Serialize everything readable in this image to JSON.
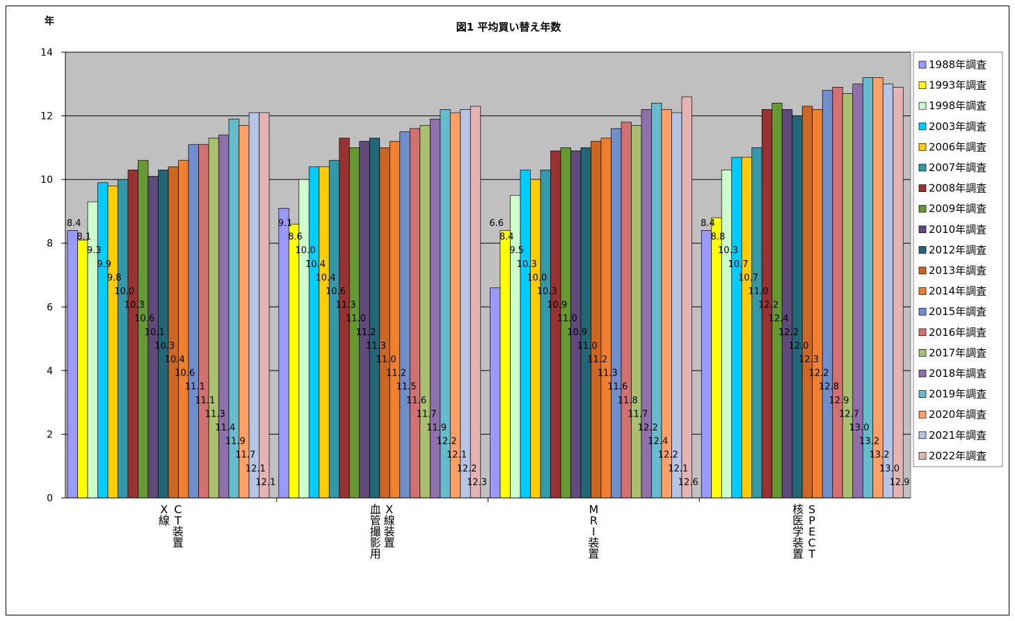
{
  "chart_data": {
    "type": "bar",
    "title": "図1 平均買い替え年数",
    "ylabel": "年",
    "ylim": [
      0,
      14
    ],
    "yticks": [
      0,
      2,
      4,
      6,
      8,
      10,
      12,
      14
    ],
    "grid": true,
    "legend_position": "right",
    "categories": [
      {
        "lines": [
          "X線",
          "CT装置"
        ]
      },
      {
        "lines": [
          "血管撮影用",
          "X線装置"
        ]
      },
      {
        "lines": [
          "MRI装置"
        ]
      },
      {
        "lines": [
          "核医学装置",
          "SPECT"
        ]
      }
    ],
    "series": [
      {
        "name": "1988年調査",
        "color": "#9999ff",
        "values": [
          8.4,
          9.1,
          6.6,
          8.4
        ]
      },
      {
        "name": "1993年調査",
        "color": "#ffff00",
        "values": [
          8.1,
          8.6,
          8.4,
          8.8
        ]
      },
      {
        "name": "1998年調査",
        "color": "#ccffcc",
        "values": [
          9.3,
          10.0,
          9.5,
          10.3
        ]
      },
      {
        "name": "2003年調査",
        "color": "#00ccff",
        "values": [
          9.9,
          10.4,
          10.3,
          10.7
        ]
      },
      {
        "name": "2006年調査",
        "color": "#ffcc00",
        "values": [
          9.8,
          10.4,
          10.0,
          10.7
        ]
      },
      {
        "name": "2007年調査",
        "color": "#3399aa",
        "values": [
          10.0,
          10.6,
          10.3,
          11.0
        ]
      },
      {
        "name": "2008年調査",
        "color": "#993333",
        "values": [
          10.3,
          11.3,
          10.9,
          12.2
        ]
      },
      {
        "name": "2009年調査",
        "color": "#669933",
        "values": [
          10.6,
          11.0,
          11.0,
          12.4
        ]
      },
      {
        "name": "2010年調査",
        "color": "#604a7b",
        "values": [
          10.1,
          11.2,
          10.9,
          12.2
        ]
      },
      {
        "name": "2012年調査",
        "color": "#226677",
        "values": [
          10.3,
          11.3,
          11.0,
          12.0
        ]
      },
      {
        "name": "2013年調査",
        "color": "#cc6622",
        "values": [
          10.4,
          11.0,
          11.2,
          12.3
        ]
      },
      {
        "name": "2014年調査",
        "color": "#f08030",
        "values": [
          10.6,
          11.2,
          11.3,
          12.2
        ]
      },
      {
        "name": "2015年調査",
        "color": "#6f8fcc",
        "values": [
          11.1,
          11.5,
          11.6,
          12.8
        ]
      },
      {
        "name": "2016年調査",
        "color": "#d07070",
        "values": [
          11.1,
          11.6,
          11.8,
          12.9
        ]
      },
      {
        "name": "2017年調査",
        "color": "#a8c070",
        "values": [
          11.3,
          11.7,
          11.7,
          12.7
        ]
      },
      {
        "name": "2018年調査",
        "color": "#9070aa",
        "values": [
          11.4,
          11.9,
          12.2,
          13.0
        ]
      },
      {
        "name": "2019年調査",
        "color": "#66bbcc",
        "values": [
          11.9,
          12.2,
          12.4,
          13.2
        ]
      },
      {
        "name": "2020年調査",
        "color": "#ffa066",
        "values": [
          11.7,
          12.1,
          12.2,
          13.2
        ]
      },
      {
        "name": "2021年調査",
        "color": "#b4c4e4",
        "values": [
          12.1,
          12.2,
          12.1,
          13.0
        ]
      },
      {
        "name": "2022年調査",
        "color": "#e4b4b4",
        "values": [
          12.1,
          12.3,
          12.6,
          12.9
        ]
      }
    ],
    "plot_background": "#c0c0c0"
  }
}
